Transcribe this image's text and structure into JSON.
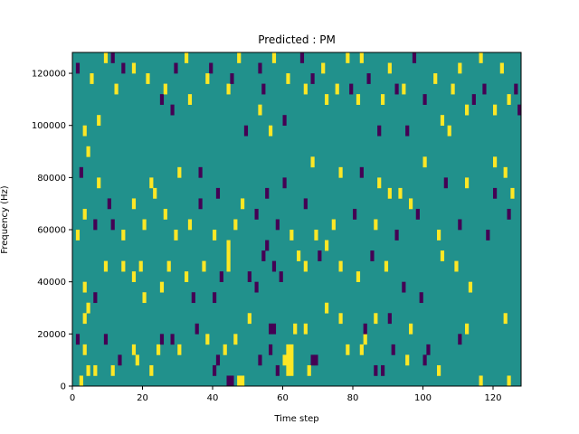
{
  "chart_data": {
    "type": "heatmap",
    "title": "Predicted : PM",
    "xlabel": "Time step",
    "ylabel": "Frequency (Hz)",
    "xlim": [
      0,
      128
    ],
    "ylim": [
      0,
      128000
    ],
    "xticks": [
      0,
      20,
      40,
      60,
      80,
      100,
      120
    ],
    "yticks": [
      0,
      20000,
      40000,
      60000,
      80000,
      100000,
      120000
    ],
    "xtick_labels": [
      "0",
      "20",
      "40",
      "60",
      "80",
      "100",
      "120"
    ],
    "ytick_labels": [
      "0",
      "20000",
      "40000",
      "60000",
      "80000",
      "100000",
      "120000"
    ],
    "grid": false,
    "colors": {
      "background_value": "#21918c",
      "low_value": "#440154",
      "high_value": "#fde725"
    },
    "cell_height_hz": 4000,
    "cell_width_steps": 1,
    "cells": [
      {
        "t": 44,
        "f": 0,
        "v": "low"
      },
      {
        "t": 45,
        "f": 0,
        "v": "low"
      },
      {
        "t": 47,
        "f": 0,
        "v": "high"
      },
      {
        "t": 48,
        "f": 0,
        "v": "high"
      },
      {
        "t": 61,
        "f": 4000,
        "v": "high"
      },
      {
        "t": 62,
        "f": 4000,
        "v": "high"
      },
      {
        "t": 60,
        "f": 8000,
        "v": "high"
      },
      {
        "t": 61,
        "f": 8000,
        "v": "high"
      },
      {
        "t": 62,
        "f": 8000,
        "v": "high"
      },
      {
        "t": 61,
        "f": 12000,
        "v": "high"
      },
      {
        "t": 62,
        "f": 12000,
        "v": "high"
      },
      {
        "t": 68,
        "f": 8000,
        "v": "low"
      },
      {
        "t": 69,
        "f": 8000,
        "v": "low"
      },
      {
        "t": 67,
        "f": 4000,
        "v": "high"
      },
      {
        "t": 58,
        "f": 4000,
        "v": "low"
      },
      {
        "t": 53,
        "f": 8000,
        "v": "low"
      },
      {
        "t": 56,
        "f": 12000,
        "v": "low"
      },
      {
        "t": 6,
        "f": 4000,
        "v": "yellow"
      },
      {
        "t": 2,
        "f": 0,
        "v": "high"
      },
      {
        "t": 4,
        "f": 4000,
        "v": "high"
      },
      {
        "t": 3,
        "f": 12000,
        "v": "high"
      },
      {
        "t": 1,
        "f": 16000,
        "v": "low"
      },
      {
        "t": 3,
        "f": 24000,
        "v": "high"
      },
      {
        "t": 4,
        "f": 28000,
        "v": "high"
      },
      {
        "t": 9,
        "f": 16000,
        "v": "low"
      },
      {
        "t": 11,
        "f": 4000,
        "v": "high"
      },
      {
        "t": 13,
        "f": 8000,
        "v": "low"
      },
      {
        "t": 17,
        "f": 12000,
        "v": "high"
      },
      {
        "t": 18,
        "f": 8000,
        "v": "high"
      },
      {
        "t": 22,
        "f": 4000,
        "v": "high"
      },
      {
        "t": 24,
        "f": 12000,
        "v": "high"
      },
      {
        "t": 25,
        "f": 16000,
        "v": "low"
      },
      {
        "t": 28,
        "f": 16000,
        "v": "low"
      },
      {
        "t": 30,
        "f": 12000,
        "v": "high"
      },
      {
        "t": 35,
        "f": 20000,
        "v": "low"
      },
      {
        "t": 38,
        "f": 16000,
        "v": "high"
      },
      {
        "t": 40,
        "f": 4000,
        "v": "low"
      },
      {
        "t": 41,
        "f": 8000,
        "v": "low"
      },
      {
        "t": 43,
        "f": 12000,
        "v": "high"
      },
      {
        "t": 46,
        "f": 16000,
        "v": "high"
      },
      {
        "t": 50,
        "f": 24000,
        "v": "high"
      },
      {
        "t": 56,
        "f": 20000,
        "v": "low"
      },
      {
        "t": 57,
        "f": 20000,
        "v": "low"
      },
      {
        "t": 63,
        "f": 20000,
        "v": "high"
      },
      {
        "t": 66,
        "f": 20000,
        "v": "high"
      },
      {
        "t": 72,
        "f": 28000,
        "v": "high"
      },
      {
        "t": 76,
        "f": 24000,
        "v": "high"
      },
      {
        "t": 78,
        "f": 12000,
        "v": "high"
      },
      {
        "t": 82,
        "f": 12000,
        "v": "high"
      },
      {
        "t": 83,
        "f": 16000,
        "v": "high"
      },
      {
        "t": 86,
        "f": 4000,
        "v": "low"
      },
      {
        "t": 88,
        "f": 4000,
        "v": "low"
      },
      {
        "t": 91,
        "f": 12000,
        "v": "low"
      },
      {
        "t": 95,
        "f": 8000,
        "v": "high"
      },
      {
        "t": 100,
        "f": 8000,
        "v": "low"
      },
      {
        "t": 104,
        "f": 4000,
        "v": "high"
      },
      {
        "t": 110,
        "f": 16000,
        "v": "low"
      },
      {
        "t": 116,
        "f": 0,
        "v": "high"
      },
      {
        "t": 124,
        "f": 0,
        "v": "high"
      },
      {
        "t": 123,
        "f": 24000,
        "v": "high"
      },
      {
        "t": 112,
        "f": 20000,
        "v": "high"
      },
      {
        "t": 101,
        "f": 12000,
        "v": "low"
      },
      {
        "t": 96,
        "f": 20000,
        "v": "high"
      },
      {
        "t": 83,
        "f": 20000,
        "v": "low"
      },
      {
        "t": 86,
        "f": 24000,
        "v": "high"
      },
      {
        "t": 90,
        "f": 24000,
        "v": "low"
      },
      {
        "t": 3,
        "f": 36000,
        "v": "high"
      },
      {
        "t": 6,
        "f": 32000,
        "v": "low"
      },
      {
        "t": 9,
        "f": 44000,
        "v": "high"
      },
      {
        "t": 14,
        "f": 44000,
        "v": "high"
      },
      {
        "t": 17,
        "f": 40000,
        "v": "high"
      },
      {
        "t": 19,
        "f": 44000,
        "v": "high"
      },
      {
        "t": 20,
        "f": 32000,
        "v": "high"
      },
      {
        "t": 25,
        "f": 36000,
        "v": "high"
      },
      {
        "t": 27,
        "f": 44000,
        "v": "high"
      },
      {
        "t": 32,
        "f": 40000,
        "v": "high"
      },
      {
        "t": 34,
        "f": 32000,
        "v": "low"
      },
      {
        "t": 37,
        "f": 44000,
        "v": "high"
      },
      {
        "t": 40,
        "f": 32000,
        "v": "low"
      },
      {
        "t": 42,
        "f": 40000,
        "v": "low"
      },
      {
        "t": 44,
        "f": 52000,
        "v": "high"
      },
      {
        "t": 44,
        "f": 48000,
        "v": "high"
      },
      {
        "t": 44,
        "f": 44000,
        "v": "high"
      },
      {
        "t": 50,
        "f": 40000,
        "v": "low"
      },
      {
        "t": 52,
        "f": 36000,
        "v": "low"
      },
      {
        "t": 54,
        "f": 48000,
        "v": "low"
      },
      {
        "t": 55,
        "f": 52000,
        "v": "low"
      },
      {
        "t": 57,
        "f": 44000,
        "v": "low"
      },
      {
        "t": 59,
        "f": 40000,
        "v": "low"
      },
      {
        "t": 64,
        "f": 48000,
        "v": "high"
      },
      {
        "t": 66,
        "f": 44000,
        "v": "high"
      },
      {
        "t": 70,
        "f": 48000,
        "v": "low"
      },
      {
        "t": 72,
        "f": 52000,
        "v": "high"
      },
      {
        "t": 76,
        "f": 44000,
        "v": "high"
      },
      {
        "t": 81,
        "f": 40000,
        "v": "high"
      },
      {
        "t": 85,
        "f": 48000,
        "v": "low"
      },
      {
        "t": 89,
        "f": 44000,
        "v": "high"
      },
      {
        "t": 94,
        "f": 36000,
        "v": "low"
      },
      {
        "t": 99,
        "f": 32000,
        "v": "low"
      },
      {
        "t": 105,
        "f": 48000,
        "v": "high"
      },
      {
        "t": 109,
        "f": 44000,
        "v": "high"
      },
      {
        "t": 113,
        "f": 36000,
        "v": "high"
      },
      {
        "t": 1,
        "f": 56000,
        "v": "high"
      },
      {
        "t": 3,
        "f": 64000,
        "v": "high"
      },
      {
        "t": 6,
        "f": 60000,
        "v": "low"
      },
      {
        "t": 11,
        "f": 60000,
        "v": "low"
      },
      {
        "t": 14,
        "f": 56000,
        "v": "high"
      },
      {
        "t": 17,
        "f": 68000,
        "v": "high"
      },
      {
        "t": 20,
        "f": 60000,
        "v": "high"
      },
      {
        "t": 23,
        "f": 72000,
        "v": "high"
      },
      {
        "t": 26,
        "f": 64000,
        "v": "high"
      },
      {
        "t": 29,
        "f": 56000,
        "v": "high"
      },
      {
        "t": 33,
        "f": 60000,
        "v": "high"
      },
      {
        "t": 36,
        "f": 68000,
        "v": "low"
      },
      {
        "t": 40,
        "f": 56000,
        "v": "high"
      },
      {
        "t": 46,
        "f": 60000,
        "v": "high"
      },
      {
        "t": 52,
        "f": 64000,
        "v": "low"
      },
      {
        "t": 58,
        "f": 60000,
        "v": "low"
      },
      {
        "t": 62,
        "f": 56000,
        "v": "high"
      },
      {
        "t": 66,
        "f": 68000,
        "v": "low"
      },
      {
        "t": 69,
        "f": 56000,
        "v": "high"
      },
      {
        "t": 74,
        "f": 60000,
        "v": "high"
      },
      {
        "t": 80,
        "f": 64000,
        "v": "low"
      },
      {
        "t": 86,
        "f": 60000,
        "v": "high"
      },
      {
        "t": 92,
        "f": 56000,
        "v": "low"
      },
      {
        "t": 98,
        "f": 64000,
        "v": "low"
      },
      {
        "t": 104,
        "f": 56000,
        "v": "high"
      },
      {
        "t": 110,
        "f": 60000,
        "v": "low"
      },
      {
        "t": 118,
        "f": 56000,
        "v": "low"
      },
      {
        "t": 124,
        "f": 64000,
        "v": "low"
      },
      {
        "t": 96,
        "f": 68000,
        "v": "high"
      },
      {
        "t": 90,
        "f": 72000,
        "v": "high"
      },
      {
        "t": 2,
        "f": 80000,
        "v": "low"
      },
      {
        "t": 4,
        "f": 88000,
        "v": "high"
      },
      {
        "t": 7,
        "f": 76000,
        "v": "high"
      },
      {
        "t": 10,
        "f": 68000,
        "v": "low"
      },
      {
        "t": 22,
        "f": 76000,
        "v": "high"
      },
      {
        "t": 30,
        "f": 80000,
        "v": "high"
      },
      {
        "t": 36,
        "f": 80000,
        "v": "low"
      },
      {
        "t": 41,
        "f": 72000,
        "v": "low"
      },
      {
        "t": 48,
        "f": 68000,
        "v": "high"
      },
      {
        "t": 55,
        "f": 72000,
        "v": "low"
      },
      {
        "t": 60,
        "f": 76000,
        "v": "low"
      },
      {
        "t": 68,
        "f": 84000,
        "v": "high"
      },
      {
        "t": 76,
        "f": 80000,
        "v": "high"
      },
      {
        "t": 82,
        "f": 80000,
        "v": "low"
      },
      {
        "t": 87,
        "f": 76000,
        "v": "high"
      },
      {
        "t": 93,
        "f": 72000,
        "v": "high"
      },
      {
        "t": 100,
        "f": 84000,
        "v": "high"
      },
      {
        "t": 106,
        "f": 76000,
        "v": "low"
      },
      {
        "t": 112,
        "f": 76000,
        "v": "high"
      },
      {
        "t": 120,
        "f": 72000,
        "v": "low"
      },
      {
        "t": 125,
        "f": 72000,
        "v": "high"
      },
      {
        "t": 123,
        "f": 80000,
        "v": "high"
      },
      {
        "t": 120,
        "f": 84000,
        "v": "high"
      },
      {
        "t": 3,
        "f": 96000,
        "v": "high"
      },
      {
        "t": 7,
        "f": 100000,
        "v": "high"
      },
      {
        "t": 12,
        "f": 112000,
        "v": "high"
      },
      {
        "t": 25,
        "f": 108000,
        "v": "low"
      },
      {
        "t": 28,
        "f": 104000,
        "v": "low"
      },
      {
        "t": 44,
        "f": 112000,
        "v": "high"
      },
      {
        "t": 49,
        "f": 96000,
        "v": "low"
      },
      {
        "t": 53,
        "f": 104000,
        "v": "high"
      },
      {
        "t": 56,
        "f": 96000,
        "v": "high"
      },
      {
        "t": 60,
        "f": 100000,
        "v": "low"
      },
      {
        "t": 54,
        "f": 112000,
        "v": "low"
      },
      {
        "t": 66,
        "f": 112000,
        "v": "high"
      },
      {
        "t": 72,
        "f": 108000,
        "v": "high"
      },
      {
        "t": 79,
        "f": 112000,
        "v": "low"
      },
      {
        "t": 81,
        "f": 108000,
        "v": "high"
      },
      {
        "t": 87,
        "f": 96000,
        "v": "low"
      },
      {
        "t": 92,
        "f": 112000,
        "v": "low"
      },
      {
        "t": 95,
        "f": 96000,
        "v": "low"
      },
      {
        "t": 100,
        "f": 108000,
        "v": "low"
      },
      {
        "t": 105,
        "f": 100000,
        "v": "high"
      },
      {
        "t": 107,
        "f": 96000,
        "v": "high"
      },
      {
        "t": 112,
        "f": 104000,
        "v": "high"
      },
      {
        "t": 117,
        "f": 112000,
        "v": "low"
      },
      {
        "t": 124,
        "f": 108000,
        "v": "high"
      },
      {
        "t": 127,
        "f": 104000,
        "v": "low"
      },
      {
        "t": 1,
        "f": 120000,
        "v": "low"
      },
      {
        "t": 5,
        "f": 116000,
        "v": "high"
      },
      {
        "t": 11,
        "f": 124000,
        "v": "low"
      },
      {
        "t": 17,
        "f": 120000,
        "v": "high"
      },
      {
        "t": 21,
        "f": 116000,
        "v": "high"
      },
      {
        "t": 29,
        "f": 120000,
        "v": "low"
      },
      {
        "t": 32,
        "f": 124000,
        "v": "high"
      },
      {
        "t": 39,
        "f": 120000,
        "v": "low"
      },
      {
        "t": 47,
        "f": 124000,
        "v": "high"
      },
      {
        "t": 53,
        "f": 120000,
        "v": "low"
      },
      {
        "t": 65,
        "f": 124000,
        "v": "low"
      },
      {
        "t": 71,
        "f": 120000,
        "v": "high"
      },
      {
        "t": 78,
        "f": 124000,
        "v": "high"
      },
      {
        "t": 84,
        "f": 116000,
        "v": "low"
      },
      {
        "t": 90,
        "f": 120000,
        "v": "high"
      },
      {
        "t": 97,
        "f": 124000,
        "v": "low"
      },
      {
        "t": 103,
        "f": 116000,
        "v": "high"
      },
      {
        "t": 110,
        "f": 120000,
        "v": "high"
      },
      {
        "t": 116,
        "f": 124000,
        "v": "high"
      },
      {
        "t": 122,
        "f": 120000,
        "v": "high"
      },
      {
        "t": 9,
        "f": 124000,
        "v": "high"
      },
      {
        "t": 14,
        "f": 120000,
        "v": "low"
      },
      {
        "t": 26,
        "f": 112000,
        "v": "high"
      },
      {
        "t": 33,
        "f": 108000,
        "v": "high"
      },
      {
        "t": 38,
        "f": 116000,
        "v": "high"
      },
      {
        "t": 45,
        "f": 116000,
        "v": "low"
      },
      {
        "t": 57,
        "f": 124000,
        "v": "high"
      },
      {
        "t": 61,
        "f": 116000,
        "v": "high"
      },
      {
        "t": 68,
        "f": 116000,
        "v": "low"
      },
      {
        "t": 75,
        "f": 112000,
        "v": "high"
      },
      {
        "t": 82,
        "f": 124000,
        "v": "high"
      },
      {
        "t": 88,
        "f": 108000,
        "v": "high"
      },
      {
        "t": 94,
        "f": 112000,
        "v": "high"
      },
      {
        "t": 108,
        "f": 112000,
        "v": "high"
      },
      {
        "t": 114,
        "f": 108000,
        "v": "low"
      },
      {
        "t": 120,
        "f": 104000,
        "v": "high"
      },
      {
        "t": 126,
        "f": 112000,
        "v": "low"
      }
    ]
  }
}
